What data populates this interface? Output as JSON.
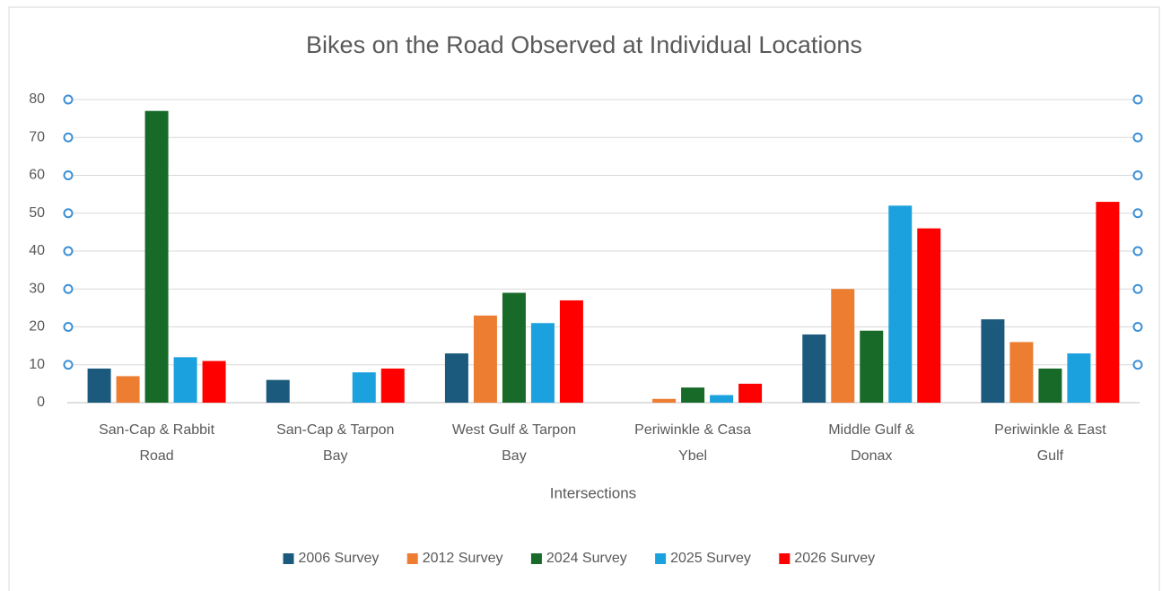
{
  "chart_data": {
    "type": "bar",
    "title": "Bikes on the Road Observed at Individual Locations",
    "x_label": "Intersections",
    "categories": [
      "San-Cap & Rabbit Road",
      "San-Cap & Tarpon Bay",
      "West Gulf & Tarpon Bay",
      "Periwinkle & Casa Ybel",
      "Middle Gulf & Donax",
      "Periwinkle & East Gulf"
    ],
    "series": [
      {
        "name": "2006 Survey",
        "color": "#1b5a7d",
        "values": [
          9,
          6,
          13,
          0,
          18,
          22
        ]
      },
      {
        "name": "2012 Survey",
        "color": "#ed7d31",
        "values": [
          7,
          0,
          23,
          1,
          30,
          16
        ]
      },
      {
        "name": "2024 Survey",
        "color": "#186a28",
        "values": [
          77,
          0,
          29,
          4,
          19,
          9
        ]
      },
      {
        "name": "2025 Survey",
        "color": "#1ba1de",
        "values": [
          12,
          8,
          21,
          2,
          52,
          13
        ]
      },
      {
        "name": "2026 Survey",
        "color": "#ff0000",
        "values": [
          11,
          9,
          27,
          5,
          46,
          53
        ]
      }
    ],
    "ylim": [
      0,
      80
    ],
    "yticks": [
      0,
      10,
      20,
      30,
      40,
      50,
      60,
      70,
      80
    ],
    "grid": true,
    "legend": "bottom"
  }
}
